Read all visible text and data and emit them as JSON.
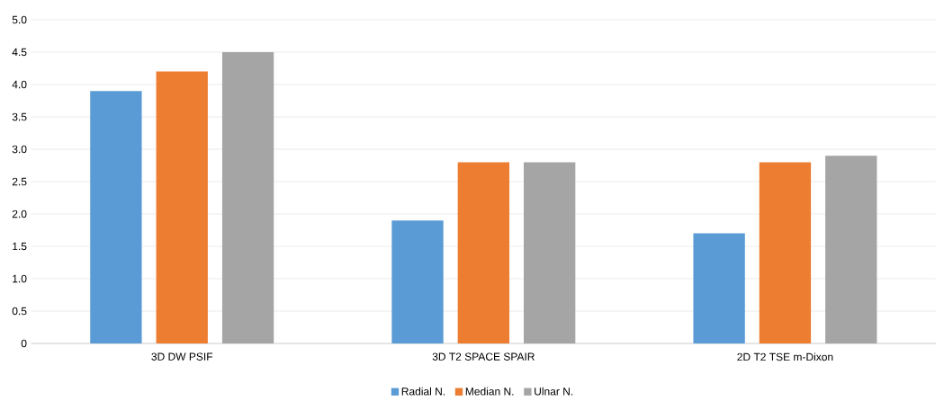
{
  "chart_data": {
    "type": "bar",
    "categories": [
      "3D DW PSIF",
      "3D T2 SPACE SPAIR",
      "2D T2 TSE m-Dixon"
    ],
    "series": [
      {
        "name": "Radial N.",
        "color": "#5b9bd5",
        "values": [
          3.9,
          1.9,
          1.7
        ]
      },
      {
        "name": "Median N.",
        "color": "#ed7d31",
        "values": [
          4.2,
          2.8,
          2.8
        ]
      },
      {
        "name": "Ulnar N.",
        "color": "#a5a5a5",
        "values": [
          4.5,
          2.8,
          2.9
        ]
      }
    ],
    "ylim": [
      0,
      5
    ],
    "yticks": [
      0,
      {
        "value": 0.5,
        "label": "0.5"
      },
      {
        "value": 1,
        "label": "1.0"
      },
      {
        "value": 1.5,
        "label": "1.5"
      },
      {
        "value": 2,
        "label": "2.0"
      },
      {
        "value": 2.5,
        "label": "2.5"
      },
      {
        "value": 3,
        "label": "3.0"
      },
      {
        "value": 3.5,
        "label": "3.5"
      },
      {
        "value": 4,
        "label": "4.0"
      },
      {
        "value": 4.5,
        "label": "4.5"
      },
      {
        "value": 5,
        "label": "5.0"
      }
    ],
    "grid": "y",
    "legend": "bottom"
  }
}
